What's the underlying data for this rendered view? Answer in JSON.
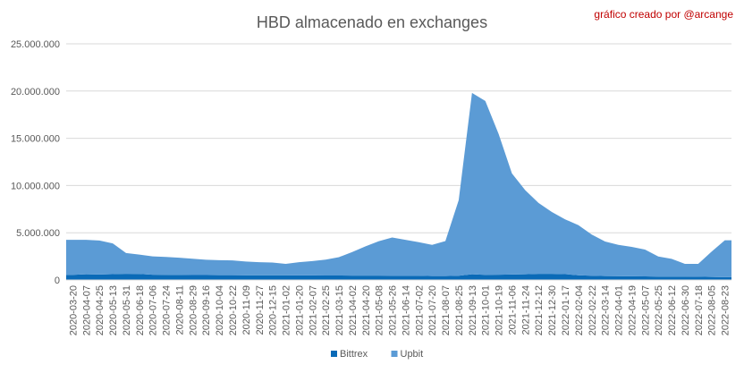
{
  "credit": "gráfico creado por @arcange",
  "chart_data": {
    "type": "area",
    "stacked": true,
    "title": "HBD almacenado en exchanges",
    "xlabel": "",
    "ylabel": "",
    "ylim": [
      0,
      25000000
    ],
    "y_ticks": [
      "0",
      "5.000.000",
      "10.000.000",
      "15.000.000",
      "20.000.000",
      "25.000.000"
    ],
    "grid": "horizontal",
    "legend_position": "bottom",
    "x_ticks": [
      "2020-03-20",
      "2020-04-07",
      "2020-04-25",
      "2020-05-13",
      "2020-05-31",
      "2020-06-18",
      "2020-07-06",
      "2020-07-24",
      "2020-08-11",
      "2020-08-29",
      "2020-09-16",
      "2020-10-04",
      "2020-10-22",
      "2020-11-09",
      "2020-11-27",
      "2020-12-15",
      "2021-01-02",
      "2021-01-20",
      "2021-02-07",
      "2021-02-25",
      "2021-03-15",
      "2021-04-02",
      "2021-04-20",
      "2021-05-08",
      "2021-05-26",
      "2021-06-14",
      "2021-07-02",
      "2021-07-20",
      "2021-08-07",
      "2021-08-25",
      "2021-09-13",
      "2021-10-01",
      "2021-10-19",
      "2021-11-06",
      "2021-11-24",
      "2021-12-12",
      "2021-12-30",
      "2022-01-17",
      "2022-02-04",
      "2022-02-22",
      "2022-03-14",
      "2022-04-01",
      "2022-04-19",
      "2022-05-07",
      "2022-05-25",
      "2022-06-12",
      "2022-06-30",
      "2022-07-18",
      "2022-08-05",
      "2022-08-23"
    ],
    "series": [
      {
        "name": "Bittrex",
        "color": "#0a6ab7",
        "values": [
          550000,
          600000,
          580000,
          620000,
          650000,
          640000,
          560000,
          540000,
          530000,
          520000,
          520000,
          510000,
          510000,
          500000,
          500000,
          500000,
          500000,
          480000,
          480000,
          470000,
          470000,
          460000,
          460000,
          460000,
          450000,
          450000,
          450000,
          420000,
          420000,
          450000,
          600000,
          550000,
          560000,
          580000,
          600000,
          650000,
          650000,
          620000,
          500000,
          450000,
          420000,
          400000,
          390000,
          380000,
          360000,
          350000,
          350000,
          340000,
          320000,
          300000
        ]
      },
      {
        "name": "Upbit",
        "color": "#5b9bd5",
        "values": [
          3700000,
          3650000,
          3600000,
          3250000,
          2200000,
          2050000,
          1940000,
          1900000,
          1820000,
          1730000,
          1620000,
          1590000,
          1560000,
          1450000,
          1380000,
          1350000,
          1200000,
          1400000,
          1520000,
          1680000,
          1950000,
          2500000,
          3100000,
          3650000,
          4050000,
          3800000,
          3550000,
          3300000,
          3700000,
          8000000,
          19200000,
          18400000,
          14900000,
          10700000,
          8900000,
          7500000,
          6550000,
          5800000,
          5300000,
          4350000,
          3650000,
          3320000,
          3110000,
          2840000,
          2120000,
          1890000,
          1350000,
          1360000,
          2680000,
          3900000
        ]
      }
    ]
  }
}
